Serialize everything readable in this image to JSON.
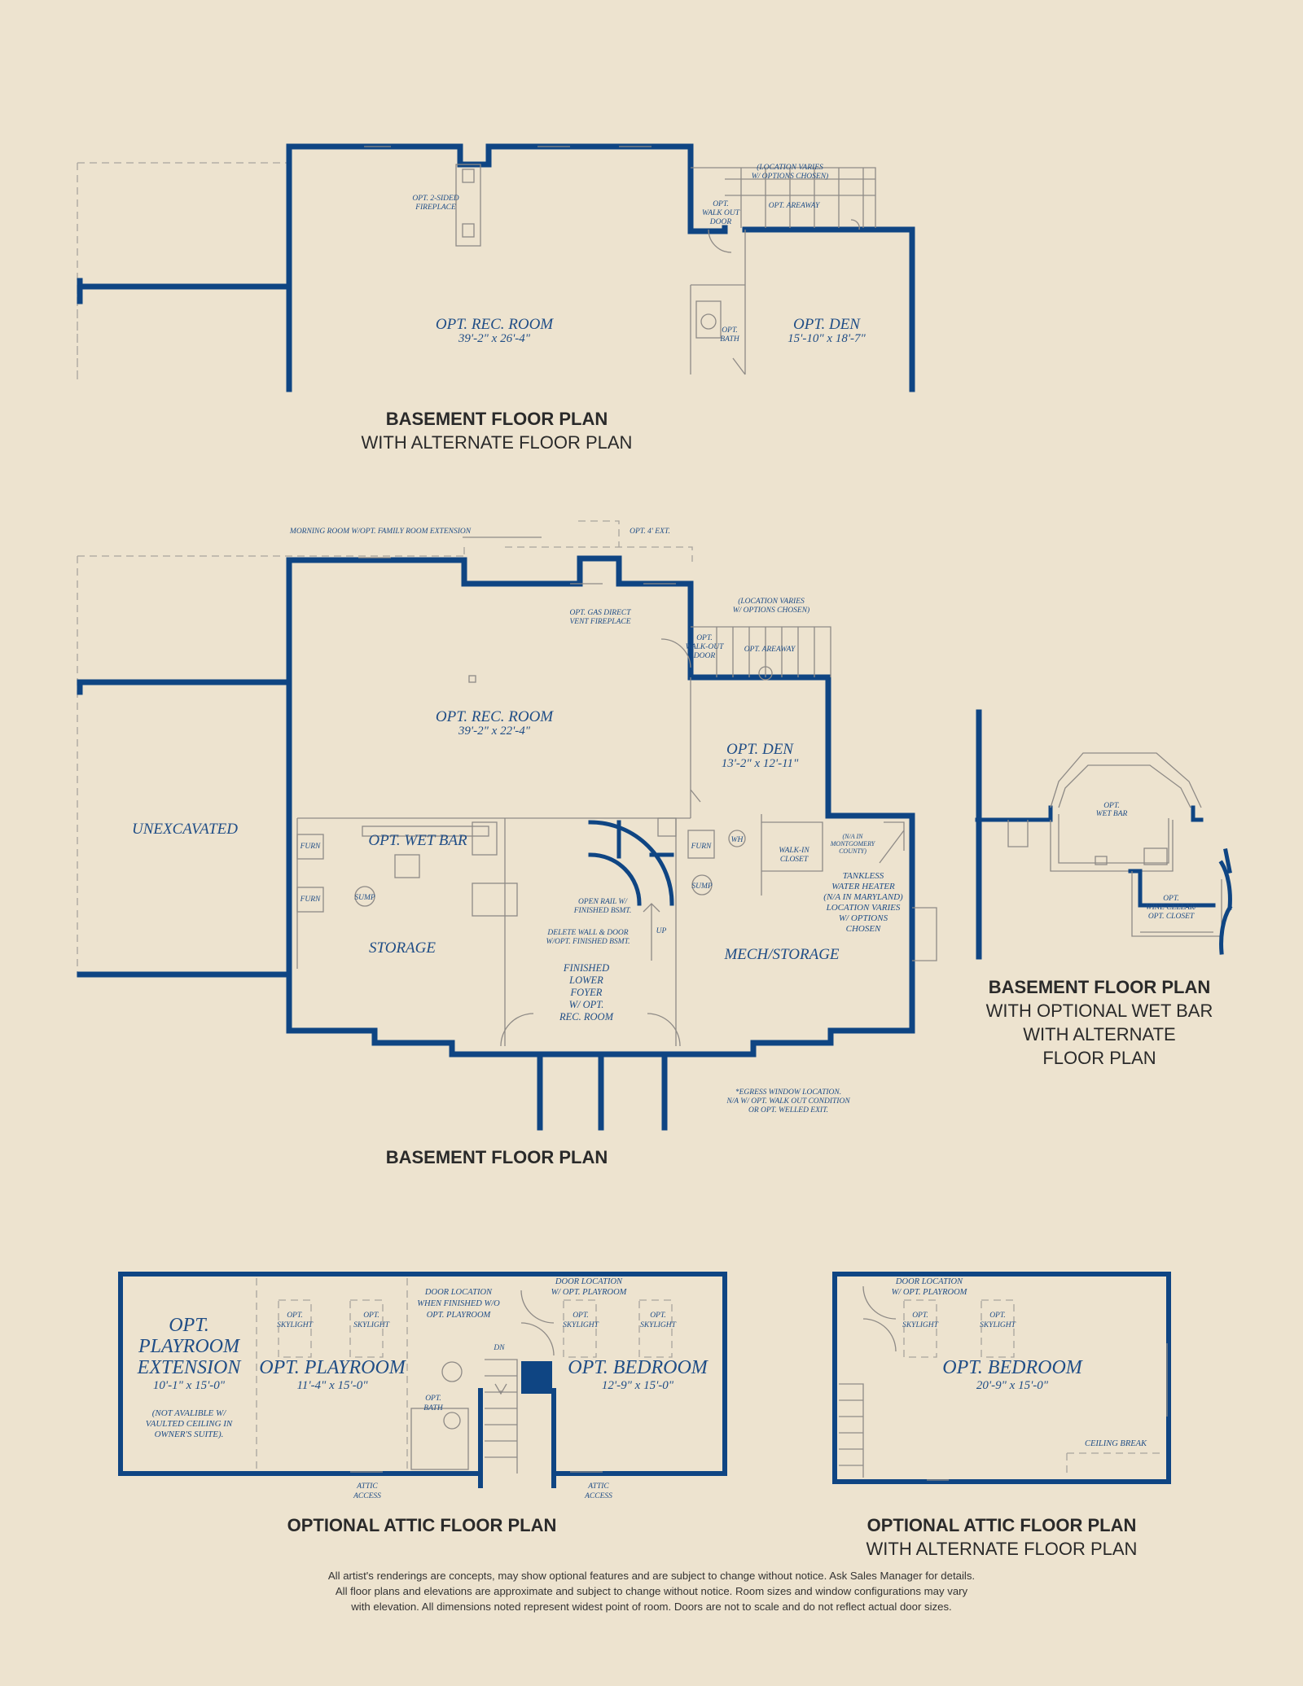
{
  "captions": {
    "basement_alt": {
      "title": "BASEMENT FLOOR PLAN",
      "subtitle": "WITH ALTERNATE FLOOR PLAN"
    },
    "basement": {
      "title": "BASEMENT FLOOR PLAN"
    },
    "wet_bar": {
      "title": "BASEMENT FLOOR PLAN",
      "line1": "WITH OPTIONAL WET BAR",
      "line2": "WITH ALTERNATE",
      "line3": "FLOOR PLAN"
    },
    "attic": {
      "title": "OPTIONAL ATTIC FLOOR PLAN"
    },
    "attic_alt": {
      "title": "OPTIONAL ATTIC FLOOR PLAN",
      "subtitle": "WITH ALTERNATE FLOOR PLAN"
    }
  },
  "plan_top": {
    "rec_room": {
      "name": "OPT. REC. ROOM",
      "dims": "39'-2\" x 26'-4\""
    },
    "den": {
      "name": "OPT. DEN",
      "dims": "15'-10\" x 18'-7\""
    },
    "fireplace_1": "OPT. 2-SIDED",
    "fireplace_2": "FIREPLACE",
    "location_1": "(LOCATION VARIES",
    "location_2": "W/ OPTIONS CHOSEN)",
    "walkout_1": "OPT.",
    "walkout_2": "WALK OUT",
    "walkout_3": "DOOR",
    "areaway": "OPT. AREAWAY",
    "bath_1": "OPT.",
    "bath_2": "BATH"
  },
  "plan_main": {
    "morning_room": "MORNING ROOM W/OPT. FAMILY ROOM EXTENSION",
    "ext": "OPT. 4' EXT.",
    "fireplace_1": "OPT. GAS DIRECT",
    "fireplace_2": "VENT FIREPLACE",
    "location_1": "(LOCATION VARIES",
    "location_2": "W/ OPTIONS CHOSEN)",
    "walkout_1": "OPT.",
    "walkout_2": "WALK-OUT",
    "walkout_3": "DOOR",
    "areaway": "OPT. AREAWAY",
    "rec_room": {
      "name": "OPT. REC. ROOM",
      "dims": "39'-2\" x 22'-4\""
    },
    "den": {
      "name": "OPT. DEN",
      "dims": "13'-2\" x 12'-11\""
    },
    "unexcavated": "UNEXCAVATED",
    "wet_bar": "OPT. WET BAR",
    "furn": "FURN",
    "sump": "SUMP",
    "wh": "WH",
    "storage": "STORAGE",
    "mech": "MECH/STORAGE",
    "walkin_1": "WALK-IN",
    "walkin_2": "CLOSET",
    "mont_1": "(N/A IN",
    "mont_2": "MONTGOMERY",
    "mont_3": "COUNTY)",
    "tankless": [
      "TANKLESS",
      "WATER HEATER",
      "(N/A IN MARYLAND)",
      "LOCATION VARIES",
      "W/ OPTIONS",
      "CHOSEN"
    ],
    "open_rail_1": "OPEN RAIL W/",
    "open_rail_2": "FINISHED BSMT.",
    "delete_1": "DELETE WALL & DOOR",
    "delete_2": "W/OPT. FINISHED BSMT.",
    "up": "UP",
    "foyer": [
      "FINISHED",
      "LOWER",
      "FOYER",
      "W/ OPT.",
      "REC. ROOM"
    ],
    "egress": [
      "*EGRESS WINDOW LOCATION.",
      "N/A W/ OPT. WALK OUT CONDITION",
      "OR OPT. WELLED EXIT."
    ]
  },
  "plan_wetbar": {
    "wet_bar_1": "OPT.",
    "wet_bar_2": "WET BAR",
    "wine_1": "OPT.",
    "wine_2": "WINE CELLAR/",
    "wine_3": "OPT. CLOSET"
  },
  "plan_attic": {
    "playroom_ext": {
      "l1": "OPT.",
      "l2": "PLAYROOM",
      "l3": "EXTENSION",
      "dims": "10'-1\" x 15'-0\""
    },
    "playroom_note": [
      "(NOT AVALIBLE W/",
      "VAULTED CEILING IN",
      "OWNER'S SUITE)."
    ],
    "playroom": {
      "name": "OPT. PLAYROOM",
      "dims": "11'-4\" x 15'-0\""
    },
    "bedroom": {
      "name": "OPT. BEDROOM",
      "dims": "12'-9\" x 15'-0\""
    },
    "skylight_1": "OPT.",
    "skylight_2": "SKYLIGHT",
    "door_loc": [
      "DOOR LOCATION",
      "WHEN FINISHED W/O",
      "OPT. PLAYROOM"
    ],
    "door_loc2": [
      "DOOR LOCATION",
      "W/ OPT. PLAYROOM"
    ],
    "dn": "DN",
    "bath_1": "OPT.",
    "bath_2": "BATH",
    "attic_1": "ATTIC",
    "attic_2": "ACCESS"
  },
  "plan_attic_alt": {
    "door_loc": [
      "DOOR LOCATION",
      "W/ OPT. PLAYROOM"
    ],
    "skylight_1": "OPT.",
    "skylight_2": "SKYLIGHT",
    "bedroom": {
      "name": "OPT. BEDROOM",
      "dims": "20'-9\" x 15'-0\""
    },
    "ceiling_break": "CEILING BREAK"
  },
  "disclaimer": [
    "All artist's renderings are concepts, may show optional features and are subject to change without notice. Ask Sales Manager for details.",
    "All floor plans and elevations are approximate and subject to change without notice. Room sizes and window configurations may vary",
    "with elevation. All dimensions noted represent widest point of room. Doors are not to scale and do not reflect actual door sizes."
  ]
}
